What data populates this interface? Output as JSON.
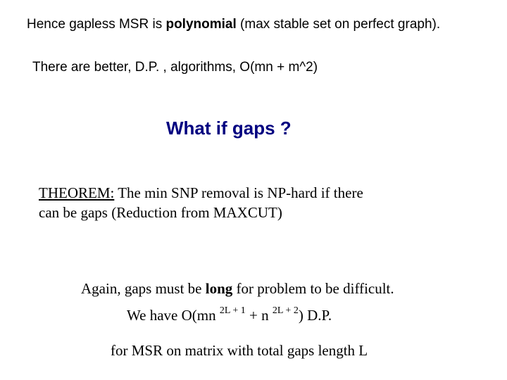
{
  "background_color": "#ffffff",
  "text_color": "#000000",
  "heading_color": "#000080",
  "line1_pre": "Hence gapless MSR is ",
  "line1_bold": "polynomial",
  "line1_post": " (max stable set on perfect graph).",
  "line2": "There are better, D.P. , algorithms, O(mn + m^2)",
  "heading": "What if gaps ?",
  "theorem_label": "THEOREM:",
  "theorem_text1": " The min SNP removal is NP-hard if there",
  "theorem_text2": "can be gaps (Reduction from MAXCUT)",
  "line3_pre": "Again, gaps must be ",
  "line3_bold": "long",
  "line3_post": " for problem to be difficult.",
  "formula_pre": "We have O(mn ",
  "formula_exp1": "2L + 1",
  "formula_mid": " + n ",
  "formula_exp2": "2L + 2",
  "formula_post": ")   D.P.",
  "line5": "for MSR on matrix with total gaps length L"
}
